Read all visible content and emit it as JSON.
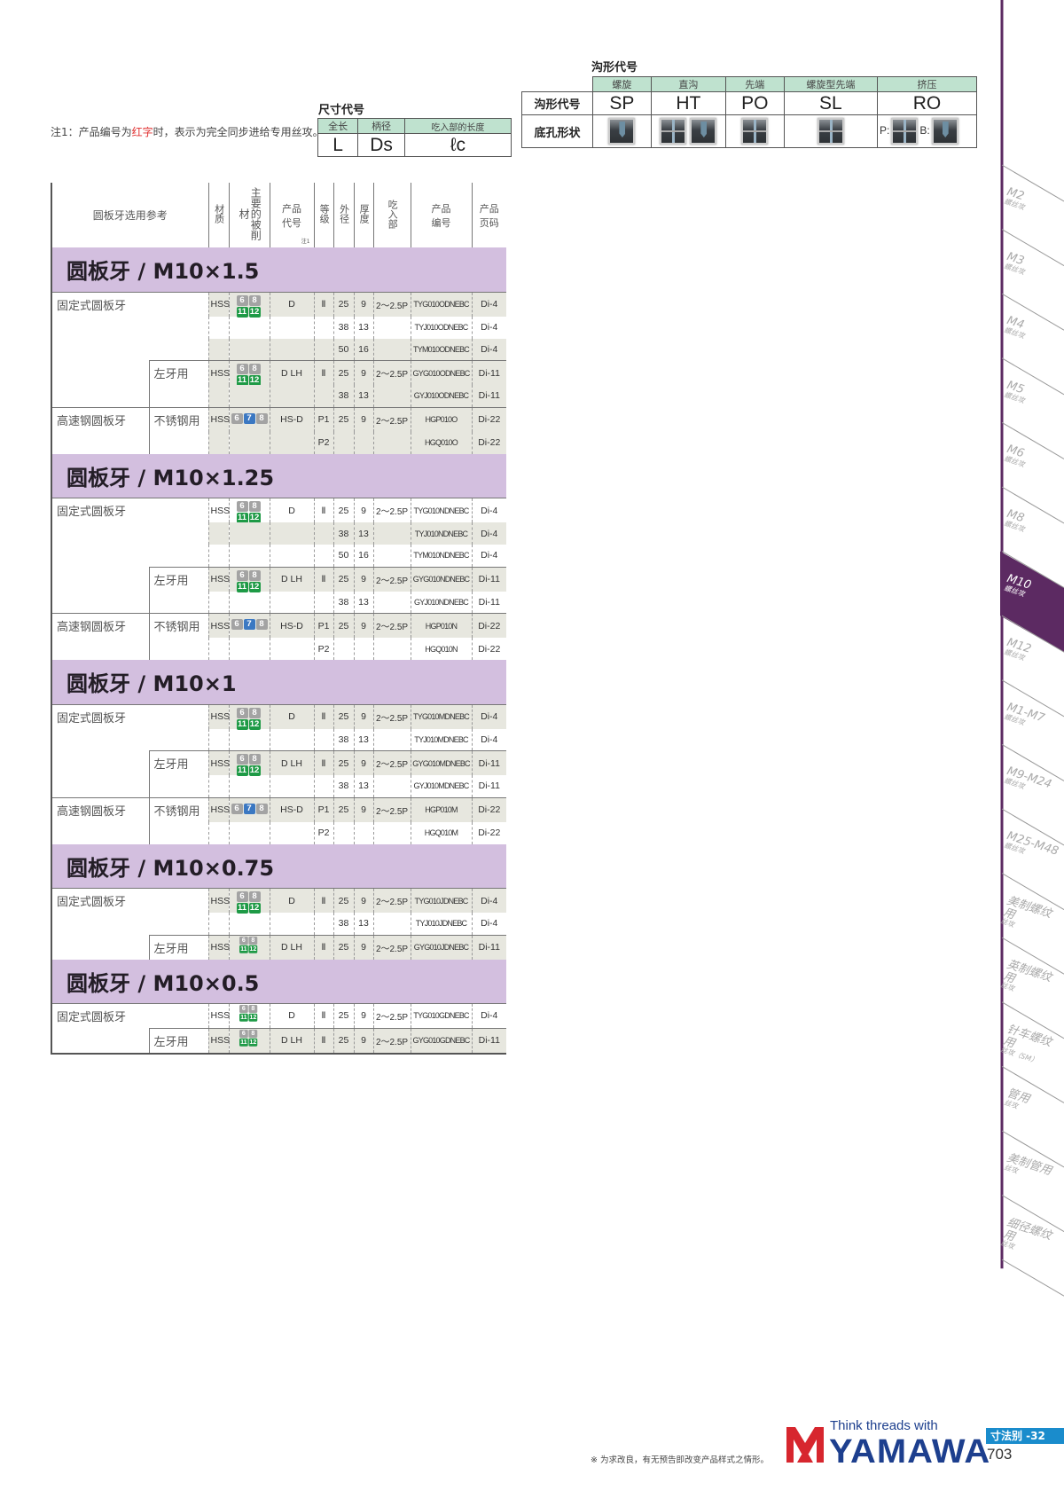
{
  "note": {
    "prefix": "注1：产品编号为",
    "red": "红字",
    "suffix": "时，表示为完全同步进给专用丝攻。"
  },
  "dimension_codes": {
    "title": "尺寸代号",
    "headers": [
      "全长",
      "柄径",
      "吃入部的长度"
    ],
    "codes": [
      "L",
      "Ds",
      "ℓc"
    ]
  },
  "flute_codes": {
    "title": "沟形代号",
    "headers": [
      "螺旋",
      "直沟",
      "先端",
      "螺旋型先端",
      "挤压"
    ],
    "row1_label": "沟形代号",
    "codes": [
      "SP",
      "HT",
      "PO",
      "SL",
      "RO"
    ],
    "row2_label": "底孔形状",
    "ro_labels": [
      "P:",
      "B:"
    ]
  },
  "main_table": {
    "headers": {
      "selection": "圆板牙选用参考",
      "material": "材质",
      "workpiece": "主要的被削材",
      "product_code": "产品代号",
      "note_mark": "注1",
      "grade": "等级",
      "outer_dia": "外径",
      "thickness": "厚度",
      "chamfer": "吃入部",
      "part_no": "产品编号",
      "page": "产品页码"
    },
    "sections": [
      {
        "title": "圆板牙 / M10×1.5",
        "rows": [
          {
            "group": "固定式圆板牙",
            "mat": "HSS",
            "work": "g",
            "code": "D",
            "grade": "Ⅱ",
            "od": "25",
            "t": "9",
            "ch": "2～2.5P",
            "part": "TYG010ODNEBC",
            "page": "Di-4",
            "shade": true,
            "border": "full"
          },
          {
            "od": "38",
            "t": "13",
            "part": "TYJ010ODNEBC",
            "page": "Di-4",
            "shade": false
          },
          {
            "od": "50",
            "t": "16",
            "part": "TYM010ODNEBC",
            "page": "Di-4",
            "shade": true
          },
          {
            "sub": "左牙用",
            "mat": "HSS",
            "work": "g",
            "code": "D LH",
            "grade": "Ⅱ",
            "od": "25",
            "t": "9",
            "ch": "2～2.5P",
            "part": "GYG010ODNEBC",
            "page": "Di-11",
            "shade": true,
            "border": "sub",
            "subline": true
          },
          {
            "od": "38",
            "t": "13",
            "part": "GYJ010ODNEBC",
            "page": "Di-11",
            "shade": true,
            "subline": true
          },
          {
            "group": "高速钢圆板牙",
            "sub": "不锈钢用",
            "mat": "HSS",
            "work": "b",
            "code": "HS-D",
            "grade": "P1",
            "od": "25",
            "t": "9",
            "ch": "2～2.5P",
            "part": "HGP010O",
            "page": "Di-22",
            "shade": true,
            "border": "full",
            "subline": true
          },
          {
            "grade": "P2",
            "part": "HGQ010O",
            "page": "Di-22",
            "shade": true,
            "subline": true
          }
        ]
      },
      {
        "title": "圆板牙 / M10×1.25",
        "rows": [
          {
            "group": "固定式圆板牙",
            "mat": "HSS",
            "work": "g",
            "code": "D",
            "grade": "Ⅱ",
            "od": "25",
            "t": "9",
            "ch": "2～2.5P",
            "part": "TYG010NDNEBC",
            "page": "Di-4",
            "shade": false,
            "border": "full"
          },
          {
            "od": "38",
            "t": "13",
            "part": "TYJ010NDNEBC",
            "page": "Di-4",
            "shade": true
          },
          {
            "od": "50",
            "t": "16",
            "part": "TYM010NDNEBC",
            "page": "Di-4",
            "shade": false
          },
          {
            "sub": "左牙用",
            "mat": "HSS",
            "work": "g",
            "code": "D LH",
            "grade": "Ⅱ",
            "od": "25",
            "t": "9",
            "ch": "2～2.5P",
            "part": "GYG010NDNEBC",
            "page": "Di-11",
            "shade": true,
            "border": "sub",
            "subline": true
          },
          {
            "od": "38",
            "t": "13",
            "part": "GYJ010NDNEBC",
            "page": "Di-11",
            "shade": false,
            "subline": true
          },
          {
            "group": "高速钢圆板牙",
            "sub": "不锈钢用",
            "mat": "HSS",
            "work": "b",
            "code": "HS-D",
            "grade": "P1",
            "od": "25",
            "t": "9",
            "ch": "2～2.5P",
            "part": "HGP010N",
            "page": "Di-22",
            "shade": true,
            "border": "full",
            "subline": true
          },
          {
            "grade": "P2",
            "part": "HGQ010N",
            "page": "Di-22",
            "shade": false,
            "subline": true
          }
        ]
      },
      {
        "title": "圆板牙 / M10×1",
        "rows": [
          {
            "group": "固定式圆板牙",
            "mat": "HSS",
            "work": "g",
            "code": "D",
            "grade": "Ⅱ",
            "od": "25",
            "t": "9",
            "ch": "2～2.5P",
            "part": "TYG010MDNEBC",
            "page": "Di-4",
            "shade": true,
            "border": "full"
          },
          {
            "od": "38",
            "t": "13",
            "part": "TYJ010MDNEBC",
            "page": "Di-4",
            "shade": false
          },
          {
            "sub": "左牙用",
            "mat": "HSS",
            "work": "g",
            "code": "D LH",
            "grade": "Ⅱ",
            "od": "25",
            "t": "9",
            "ch": "2～2.5P",
            "part": "GYG010MDNEBC",
            "page": "Di-11",
            "shade": true,
            "border": "sub",
            "subline": true
          },
          {
            "od": "38",
            "t": "13",
            "part": "GYJ010MDNEBC",
            "page": "Di-11",
            "shade": false,
            "subline": true
          },
          {
            "group": "高速钢圆板牙",
            "sub": "不锈钢用",
            "mat": "HSS",
            "work": "b",
            "code": "HS-D",
            "grade": "P1",
            "od": "25",
            "t": "9",
            "ch": "2～2.5P",
            "part": "HGP010M",
            "page": "Di-22",
            "shade": true,
            "border": "full",
            "subline": true
          },
          {
            "grade": "P2",
            "part": "HGQ010M",
            "page": "Di-22",
            "shade": false,
            "subline": true
          }
        ]
      },
      {
        "title": "圆板牙 / M10×0.75",
        "rows": [
          {
            "group": "固定式圆板牙",
            "mat": "HSS",
            "work": "g",
            "code": "D",
            "grade": "Ⅱ",
            "od": "25",
            "t": "9",
            "ch": "2～2.5P",
            "part": "TYG010JDNEBC",
            "page": "Di-4",
            "shade": true,
            "border": "full"
          },
          {
            "od": "38",
            "t": "13",
            "part": "TYJ010JDNEBC",
            "page": "Di-4",
            "shade": false
          },
          {
            "sub": "左牙用",
            "mat": "HSS",
            "work": "gc",
            "code": "D LH",
            "grade": "Ⅱ",
            "od": "25",
            "t": "9",
            "ch": "2～2.5P",
            "part": "GYG010JDNEBC",
            "page": "Di-11",
            "shade": true,
            "border": "sub",
            "subline": true
          }
        ]
      },
      {
        "title": "圆板牙 / M10×0.5",
        "rows": [
          {
            "group": "固定式圆板牙",
            "mat": "HSS",
            "work": "gc",
            "code": "D",
            "grade": "Ⅱ",
            "od": "25",
            "t": "9",
            "ch": "2～2.5P",
            "part": "TYG010GDNEBC",
            "page": "Di-4",
            "shade": false,
            "border": "full"
          },
          {
            "sub": "左牙用",
            "mat": "HSS",
            "work": "gc",
            "code": "D LH",
            "grade": "Ⅱ",
            "od": "25",
            "t": "9",
            "ch": "2～2.5P",
            "part": "GYG010GDNEBC",
            "page": "Di-11",
            "shade": true,
            "border": "sub",
            "subline": true
          }
        ]
      }
    ],
    "badge_sets": {
      "g": [
        {
          "n": "6",
          "c": "gray"
        },
        {
          "n": "8",
          "c": "gray"
        },
        {
          "n": "11",
          "c": "green"
        },
        {
          "n": "12",
          "c": "green"
        }
      ],
      "b": [
        {
          "n": "6",
          "c": "gray"
        },
        {
          "n": "7",
          "c": "blue"
        },
        {
          "n": "8",
          "c": "gray"
        }
      ]
    }
  },
  "side_tabs": [
    {
      "main": "M2",
      "sub": "螺丝攻"
    },
    {
      "main": "M3",
      "sub": "螺丝攻"
    },
    {
      "main": "M4",
      "sub": "螺丝攻"
    },
    {
      "main": "M5",
      "sub": "螺丝攻"
    },
    {
      "main": "M6",
      "sub": "螺丝攻"
    },
    {
      "main": "M8",
      "sub": "螺丝攻"
    },
    {
      "main": "M10",
      "sub": "螺丝攻",
      "active": true
    },
    {
      "main": "M12",
      "sub": "螺丝攻"
    },
    {
      "main": "M1-M7",
      "sub": "螺丝攻"
    },
    {
      "main": "M9-M24",
      "sub": "螺丝攻"
    },
    {
      "main": "M25-M48",
      "sub": "螺丝攻"
    },
    {
      "main": "美制螺纹用",
      "sub": "丝攻"
    },
    {
      "main": "英制螺纹用",
      "sub": "丝攻"
    },
    {
      "main": "针车螺纹用",
      "sub": "丝攻（SM）"
    },
    {
      "main": "管用",
      "sub": "丝攻"
    },
    {
      "main": "美制管用",
      "sub": "丝攻"
    },
    {
      "main": "细径螺纹用",
      "sub": "丝攻"
    }
  ],
  "colors": {
    "accent_purple": "#5c2a62",
    "section_bg": "#d3bfdf",
    "header_green": "#bfe2cf",
    "brand_blue": "#1d3f8e",
    "brand_red": "#d7262e",
    "page_blue": "#1a8ccc"
  },
  "footer": {
    "disclaimer": "※ 为求改良，有无预告即改变产品样式之情形。",
    "slogan": "Think threads with",
    "brand": "YAMAWA",
    "section_tag": "寸法别 -32",
    "page_number": "703"
  }
}
